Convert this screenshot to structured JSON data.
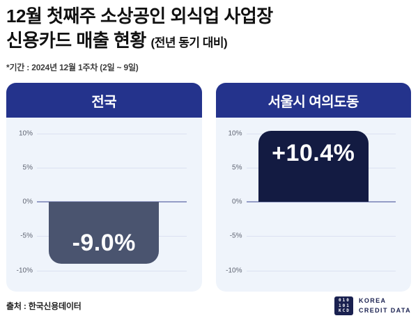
{
  "header": {
    "title_line1": "12월 첫째주 소상공인 외식업 사업장",
    "title_line2": "신용카드 매출 현황",
    "title_suffix": "(전년 동기 대비)",
    "period_note": "*기간 : 2024년 12월 1주차 (2일 ~ 9일)"
  },
  "chart_data": [
    {
      "type": "bar",
      "title": "전국",
      "categories": [
        "전국"
      ],
      "values": [
        -9.0
      ],
      "value_labels": [
        "-9.0%"
      ],
      "ylim": [
        -12.3,
        12.3
      ],
      "yticks": [
        10,
        5,
        0,
        -5,
        -10
      ],
      "ytick_labels": [
        "10%",
        "5%",
        "0%",
        "-5%",
        "-10%"
      ],
      "grid": true,
      "legend": "none",
      "bar_color": "#4a546f"
    },
    {
      "type": "bar",
      "title": "서울시 여의도동",
      "categories": [
        "서울시 여의도동"
      ],
      "values": [
        10.4
      ],
      "value_labels": [
        "+10.4%"
      ],
      "ylim": [
        -12.3,
        12.3
      ],
      "yticks": [
        10,
        5,
        0,
        -5,
        -10
      ],
      "ytick_labels": [
        "10%",
        "5%",
        "0%",
        "-5%",
        "-10%"
      ],
      "grid": true,
      "legend": "none",
      "bar_color": "#131b42"
    }
  ],
  "footer": {
    "source": "출처 : 한국신용데이터",
    "logo": {
      "square_rows": [
        "010",
        "101",
        "KCD"
      ],
      "name_line1": "KOREA",
      "name_line2": "CREDIT DATA"
    }
  },
  "colors": {
    "page_background": "#ffffff",
    "card_header": "#24338c",
    "card_body": "#eff4fb",
    "gridline": "#dbe1f1",
    "zero_line": "#949cc6",
    "bar_negative": "#4a546f",
    "bar_positive": "#131b42",
    "logo_navy": "#1a2150",
    "title_text": "#111111"
  }
}
